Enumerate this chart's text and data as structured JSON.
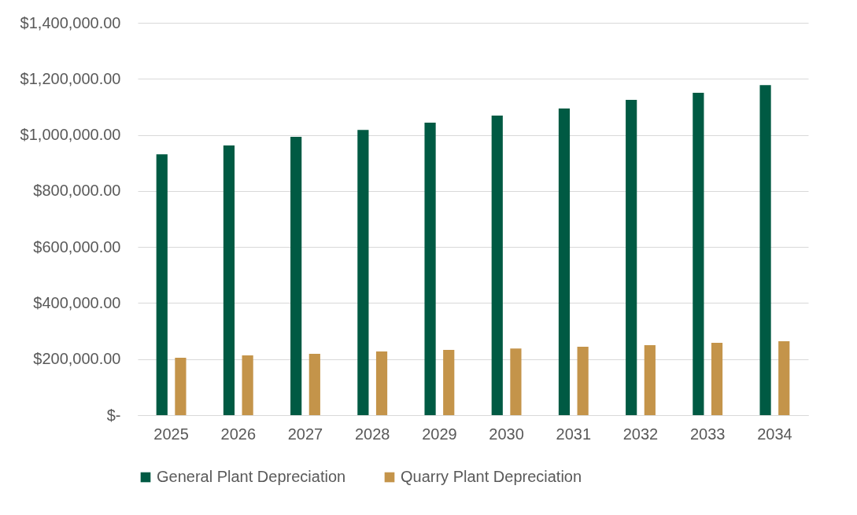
{
  "chart_data": {
    "type": "bar",
    "categories": [
      "2025",
      "2026",
      "2027",
      "2028",
      "2029",
      "2030",
      "2031",
      "2032",
      "2033",
      "2034"
    ],
    "series": [
      {
        "name": "General Plant Depreciation",
        "color": "#005a43",
        "values": [
          931000,
          962000,
          993000,
          1018000,
          1044000,
          1069000,
          1094000,
          1125000,
          1150000,
          1178000
        ]
      },
      {
        "name": "Quarry Plant Depreciation",
        "color": "#c4944a",
        "values": [
          205000,
          213000,
          219000,
          227000,
          233000,
          238000,
          244000,
          250000,
          258000,
          264000
        ]
      }
    ],
    "ylim": [
      0,
      1400000
    ],
    "yticks": [
      {
        "value": 0,
        "label": "$-"
      },
      {
        "value": 200000,
        "label": "$200,000.00"
      },
      {
        "value": 400000,
        "label": "$400,000.00"
      },
      {
        "value": 600000,
        "label": "$600,000.00"
      },
      {
        "value": 800000,
        "label": "$800,000.00"
      },
      {
        "value": 1000000,
        "label": "$1,000,000.00"
      },
      {
        "value": 1200000,
        "label": "$1,200,000.00"
      },
      {
        "value": 1400000,
        "label": "$1,400,000.00"
      }
    ],
    "grid": "y",
    "legend": "bottom"
  }
}
